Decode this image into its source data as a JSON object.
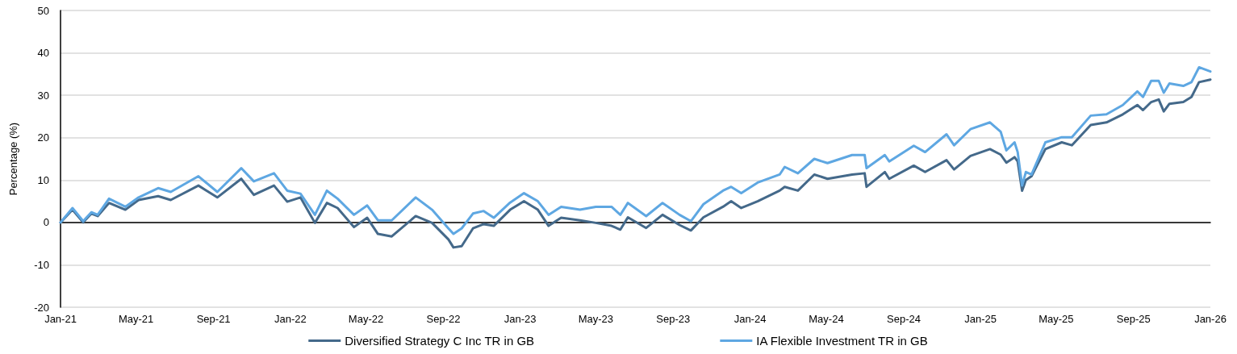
{
  "chart_data": {
    "type": "line",
    "ylabel": "Percentage (%)",
    "x": [
      "2021-01-01",
      "2021-01-20",
      "2021-02-06",
      "2021-02-19",
      "2021-03-01",
      "2021-03-19",
      "2021-04-14",
      "2021-05-05",
      "2021-06-05",
      "2021-06-25",
      "2021-08-08",
      "2021-09-07",
      "2021-10-15",
      "2021-11-04",
      "2021-12-06",
      "2021-12-27",
      "2022-01-17",
      "2022-02-09",
      "2022-02-28",
      "2022-03-17",
      "2022-04-12",
      "2022-05-03",
      "2022-05-20",
      "2022-06-11",
      "2022-07-19",
      "2022-08-14",
      "2022-09-09",
      "2022-09-17",
      "2022-09-30",
      "2022-10-18",
      "2022-11-04",
      "2022-11-20",
      "2022-12-16",
      "2023-01-07",
      "2023-01-29",
      "2023-02-15",
      "2023-03-07",
      "2023-04-06",
      "2023-05-01",
      "2023-05-26",
      "2023-06-09",
      "2023-06-21",
      "2023-07-20",
      "2023-08-15",
      "2023-09-11",
      "2023-09-29",
      "2023-10-19",
      "2023-11-19",
      "2023-12-02",
      "2023-12-18",
      "2024-01-13",
      "2024-02-17",
      "2024-02-25",
      "2024-03-17",
      "2024-04-12",
      "2024-05-03",
      "2024-06-11",
      "2024-07-01",
      "2024-07-04",
      "2024-08-02",
      "2024-08-09",
      "2024-09-17",
      "2024-10-05",
      "2024-11-08",
      "2024-11-20",
      "2024-12-16",
      "2025-01-16",
      "2025-02-02",
      "2025-02-11",
      "2025-02-24",
      "2025-03-01",
      "2025-03-08",
      "2025-03-14",
      "2025-03-23",
      "2025-04-14",
      "2025-05-10",
      "2025-05-26",
      "2025-06-25",
      "2025-07-20",
      "2025-08-15",
      "2025-09-07",
      "2025-09-16",
      "2025-09-29",
      "2025-10-11",
      "2025-10-19",
      "2025-10-28",
      "2025-11-19",
      "2025-12-02",
      "2025-12-14",
      "2026-01-01"
    ],
    "series": [
      {
        "name": "Diversified Strategy C Inc TR in GB",
        "color": "#44698a",
        "values": [
          0,
          3.0,
          0,
          2.1,
          1.5,
          4.6,
          3.0,
          5.3,
          6.2,
          5.3,
          8.7,
          5.9,
          10.3,
          6.5,
          8.7,
          4.9,
          5.9,
          -0.1,
          4.6,
          3.4,
          -1.1,
          1.1,
          -2.7,
          -3.3,
          1.5,
          -0.1,
          -4.0,
          -5.9,
          -5.6,
          -1.4,
          -0.4,
          -0.8,
          3.0,
          5.0,
          3.0,
          -0.8,
          1.1,
          0.5,
          -0.1,
          -0.8,
          -1.7,
          1.2,
          -1.3,
          1.8,
          -0.6,
          -1.9,
          1.2,
          3.7,
          5.0,
          3.4,
          5.0,
          7.5,
          8.4,
          7.5,
          11.3,
          10.3,
          11.3,
          11.6,
          8.4,
          11.9,
          10.3,
          13.4,
          11.9,
          14.7,
          12.5,
          15.7,
          17.3,
          16.0,
          14.1,
          15.4,
          14.4,
          7.5,
          10.0,
          10.9,
          17.3,
          18.9,
          18.2,
          23.0,
          23.6,
          25.5,
          27.7,
          26.5,
          28.4,
          29.0,
          26.2,
          28.0,
          28.4,
          29.6,
          33.1,
          33.7
        ]
      },
      {
        "name": "IA Flexible Investment TR in GB",
        "color": "#5ea7e2",
        "values": [
          0,
          3.4,
          0.3,
          2.4,
          1.8,
          5.6,
          3.7,
          5.9,
          8.1,
          7.2,
          10.9,
          7.2,
          12.8,
          9.7,
          11.6,
          7.5,
          6.8,
          1.8,
          7.5,
          5.6,
          1.8,
          4.0,
          0.5,
          0.5,
          5.9,
          3.0,
          -1.4,
          -2.7,
          -1.4,
          2.1,
          2.7,
          1.1,
          4.7,
          6.9,
          5.0,
          1.8,
          3.7,
          3.0,
          3.7,
          3.7,
          1.8,
          4.6,
          1.5,
          4.6,
          1.8,
          0.3,
          4.3,
          7.5,
          8.4,
          6.9,
          9.4,
          11.3,
          13.1,
          11.6,
          15.0,
          14.0,
          15.9,
          15.9,
          12.8,
          15.9,
          14.4,
          18.1,
          16.6,
          20.8,
          18.2,
          22.0,
          23.6,
          21.4,
          17.0,
          18.9,
          16.6,
          8.7,
          11.9,
          11.3,
          18.9,
          20.1,
          20.1,
          25.2,
          25.5,
          27.7,
          30.9,
          29.6,
          33.4,
          33.4,
          30.6,
          32.8,
          32.2,
          33.1,
          36.6,
          35.6
        ]
      }
    ],
    "xlim": [
      "2021-01-01",
      "2026-01-01"
    ],
    "xticks": [
      {
        "value": "2021-01",
        "label": "Jan-21"
      },
      {
        "value": "2021-05",
        "label": "May-21"
      },
      {
        "value": "2021-09",
        "label": "Sep-21"
      },
      {
        "value": "2022-01",
        "label": "Jan-22"
      },
      {
        "value": "2022-05",
        "label": "May-22"
      },
      {
        "value": "2022-09",
        "label": "Sep-22"
      },
      {
        "value": "2023-01",
        "label": "Jan-23"
      },
      {
        "value": "2023-05",
        "label": "May-23"
      },
      {
        "value": "2023-09",
        "label": "Sep-23"
      },
      {
        "value": "2024-01",
        "label": "Jan-24"
      },
      {
        "value": "2024-05",
        "label": "May-24"
      },
      {
        "value": "2024-09",
        "label": "Sep-24"
      },
      {
        "value": "2025-01",
        "label": "Jan-25"
      },
      {
        "value": "2025-05",
        "label": "May-25"
      },
      {
        "value": "2025-09",
        "label": "Sep-25"
      },
      {
        "value": "2026-01",
        "label": "Jan-26"
      }
    ],
    "ylim": [
      -20,
      50
    ],
    "yticks": [
      -20,
      -10,
      0,
      10,
      20,
      30,
      40,
      50
    ],
    "grid": "y",
    "legend": "bottom",
    "marker": "none",
    "line_style": "solid"
  }
}
